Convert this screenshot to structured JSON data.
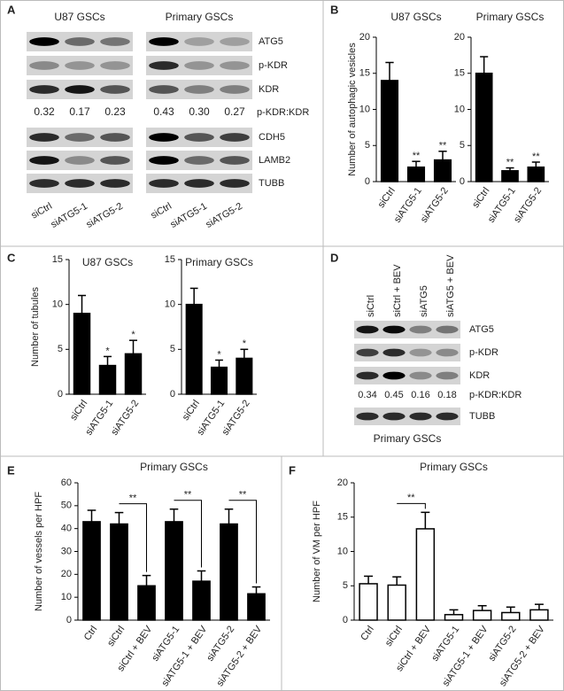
{
  "panel_labels": [
    "A",
    "B",
    "C",
    "D",
    "E",
    "F"
  ],
  "blot_a": {
    "groups": [
      "U87 GSCs",
      "Primary GSCs"
    ],
    "lanes": [
      "siCtrl",
      "siATG5-1",
      "siATG5-2"
    ],
    "rows_top": [
      "ATG5",
      "p-KDR",
      "KDR"
    ],
    "ratio_label": "p-KDR:KDR",
    "ratios": [
      [
        "0.32",
        "0.17",
        "0.23"
      ],
      [
        "0.43",
        "0.30",
        "0.27"
      ]
    ],
    "rows_bottom": [
      "CDH5",
      "LAMB2",
      "TUBB"
    ]
  },
  "blot_d": {
    "lanes": [
      "siCtrl",
      "siCtrl + BEV",
      "siATG5",
      "siATG5 + BEV"
    ],
    "rows_top": [
      "ATG5",
      "p-KDR",
      "KDR"
    ],
    "ratio_label": "p-KDR:KDR",
    "ratios": [
      "0.34",
      "0.45",
      "0.16",
      "0.18"
    ],
    "rows_bottom": [
      "TUBB"
    ],
    "caption": "Primary GSCs"
  },
  "chart_data": [
    {
      "type": "bar",
      "title": "U87 GSCs",
      "y_label": "Number of autophagic vesicles",
      "categories": [
        "siCtrl",
        "siATG5-1",
        "siATG5-2"
      ],
      "values": [
        14,
        2,
        3
      ],
      "errors": [
        2.5,
        0.8,
        1.2
      ],
      "significance": [
        null,
        "**",
        "**"
      ],
      "color": "#000000",
      "edgecolor": "#000000",
      "ylim": [
        0,
        20
      ],
      "yticks": [
        0,
        5,
        10,
        15,
        20
      ]
    },
    {
      "type": "bar",
      "title": "Primary GSCs",
      "categories": [
        "siCtrl",
        "siATG5-1",
        "siATG5-2"
      ],
      "values": [
        15,
        1.5,
        2
      ],
      "errors": [
        2.3,
        0.4,
        0.7
      ],
      "significance": [
        null,
        "**",
        "**"
      ],
      "color": "#000000",
      "edgecolor": "#000000",
      "ylim": [
        0,
        20
      ],
      "yticks": [
        0,
        5,
        10,
        15,
        20
      ]
    },
    {
      "type": "bar",
      "title": "U87 GSCs",
      "y_label": "Number of tubules",
      "categories": [
        "siCtrl",
        "siATG5-1",
        "siATG5-2"
      ],
      "values": [
        9,
        3.2,
        4.5
      ],
      "errors": [
        2,
        1,
        1.5
      ],
      "significance": [
        null,
        "*",
        "*"
      ],
      "color": "#000000",
      "edgecolor": "#000000",
      "ylim": [
        0,
        15
      ],
      "yticks": [
        0,
        5,
        10,
        15
      ]
    },
    {
      "type": "bar",
      "title": "Primary GSCs",
      "categories": [
        "siCtrl",
        "siATG5-1",
        "siATG5-2"
      ],
      "values": [
        10,
        3,
        4
      ],
      "errors": [
        1.8,
        0.8,
        1
      ],
      "significance": [
        null,
        "*",
        "*"
      ],
      "color": "#000000",
      "edgecolor": "#000000",
      "ylim": [
        0,
        15
      ],
      "yticks": [
        0,
        5,
        10,
        15
      ]
    },
    {
      "type": "bar",
      "title": "Primary GSCs",
      "y_label": "Number of vessels per HPF",
      "categories": [
        "Ctrl",
        "siCtrl",
        "siCtrl + BEV",
        "siATG5-1",
        "siATG5-1 + BEV",
        "siATG5-2",
        "siATG5-2 + BEV"
      ],
      "values": [
        43,
        42,
        15,
        43,
        17,
        42,
        11.5
      ],
      "errors": [
        5,
        5,
        4.5,
        5.5,
        4.5,
        6.5,
        3
      ],
      "comparisons": [
        {
          "pair": [
            "siCtrl",
            "siCtrl + BEV"
          ],
          "label": "**"
        },
        {
          "pair": [
            "siATG5-1",
            "siATG5-1 + BEV"
          ],
          "label": "**"
        },
        {
          "pair": [
            "siATG5-2",
            "siATG5-2 + BEV"
          ],
          "label": "**"
        }
      ],
      "color": "#000000",
      "edgecolor": "#000000",
      "ylim": [
        0,
        60
      ],
      "yticks": [
        0,
        10,
        20,
        30,
        40,
        50,
        60
      ]
    },
    {
      "type": "bar",
      "title": "Primary GSCs",
      "y_label": "Number of VM per HPF",
      "categories": [
        "Ctrl",
        "siCtrl",
        "siCtrl + BEV",
        "siATG5-1",
        "siATG5-1 + BEV",
        "siATG5-2",
        "siATG5-2 + BEV"
      ],
      "values": [
        5.3,
        5.1,
        13.3,
        0.8,
        1.4,
        1.1,
        1.5
      ],
      "errors": [
        1.1,
        1.2,
        2.4,
        0.7,
        0.7,
        0.8,
        0.8
      ],
      "comparisons": [
        {
          "pair": [
            "siCtrl",
            "siCtrl + BEV"
          ],
          "label": "**"
        }
      ],
      "color": "#ffffff",
      "edgecolor": "#000000",
      "ylim": [
        0,
        20
      ],
      "yticks": [
        0,
        5,
        10,
        15,
        20
      ]
    }
  ]
}
